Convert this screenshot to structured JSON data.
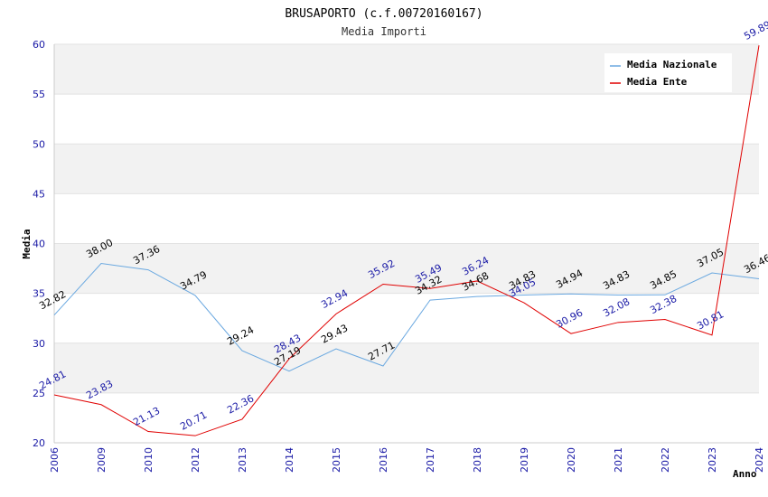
{
  "chart_data": {
    "type": "line",
    "title": "BRUSAPORTO (c.f.00720160167)",
    "subtitle": "Media Importi",
    "xlabel": "Anno",
    "ylabel": "Media",
    "ylim": [
      20,
      60
    ],
    "yticks": [
      "20",
      "25",
      "30",
      "35",
      "40",
      "45",
      "50",
      "55",
      "60"
    ],
    "categories": [
      "2006",
      "2009",
      "2010",
      "2012",
      "2013",
      "2014",
      "2015",
      "2016",
      "2017",
      "2018",
      "2019",
      "2020",
      "2021",
      "2022",
      "2023",
      "2024"
    ],
    "legend_position": "top-right",
    "series": [
      {
        "name": "Media Nazionale",
        "color": "#6aa8e0",
        "label_color": "#000000",
        "values": [
          32.82,
          38.0,
          37.36,
          34.79,
          29.24,
          27.19,
          29.43,
          27.71,
          34.32,
          34.68,
          34.83,
          34.94,
          34.83,
          34.85,
          37.05,
          36.46
        ],
        "labels": [
          "32.82",
          "38.00",
          "37.36",
          "34.79",
          "29.24",
          "27.19",
          "29.43",
          "27.71",
          "34.32",
          "34.68",
          "34.83",
          "34.94",
          "34.83",
          "34.85",
          "37.05",
          "36.46"
        ]
      },
      {
        "name": "Media Ente",
        "color": "#e00000",
        "label_color": "#1a1aa6",
        "values": [
          24.81,
          23.83,
          21.13,
          20.71,
          22.36,
          28.43,
          32.94,
          35.92,
          35.49,
          36.24,
          34.05,
          30.96,
          32.08,
          32.38,
          30.81,
          59.89
        ],
        "labels": [
          "24.81",
          "23.83",
          "21.13",
          "20.71",
          "22.36",
          "28.43",
          "32.94",
          "35.92",
          "35.49",
          "36.24",
          "34.05",
          "30.96",
          "32.08",
          "32.38",
          "30.81",
          "59.89"
        ]
      }
    ]
  }
}
